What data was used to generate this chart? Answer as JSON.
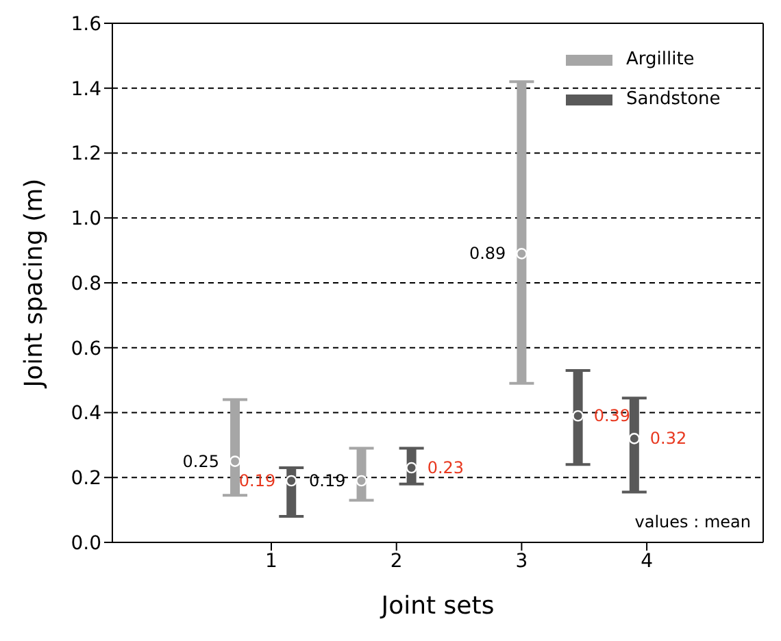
{
  "chart_data": {
    "type": "scatter",
    "xlabel": "Joint sets",
    "ylabel": "Joint spacing (m)",
    "series": [
      {
        "name": "Argillite",
        "color": "#a6a6a6",
        "x": [
          0.71,
          1.72,
          3.0
        ],
        "values": [
          0.25,
          0.19,
          0.89
        ],
        "errors": [
          [
            0.145,
            0.44
          ],
          [
            0.13,
            0.29
          ],
          [
            0.49,
            1.42
          ]
        ]
      },
      {
        "name": "Sandstone",
        "color": "#595959",
        "x": [
          1.16,
          2.12,
          3.45,
          3.9
        ],
        "values": [
          0.19,
          0.23,
          0.39,
          0.32
        ],
        "errors": [
          [
            0.08,
            0.23
          ],
          [
            0.18,
            0.29
          ],
          [
            0.24,
            0.53
          ],
          [
            0.155,
            0.445
          ]
        ]
      }
    ],
    "xlim": [
      -0.27,
      4.93
    ],
    "xticks": [
      1,
      2,
      3,
      4
    ],
    "ylim": [
      0,
      1.6
    ],
    "yticks": [
      {
        "value": 0,
        "label": "0.0"
      },
      {
        "value": 0.2,
        "label": "0.2"
      },
      {
        "value": 0.4,
        "label": "0.4"
      },
      {
        "value": 0.6,
        "label": "0.6"
      },
      {
        "value": 0.8,
        "label": "0.8"
      },
      {
        "value": 1,
        "label": "1.0"
      },
      {
        "value": 1.2,
        "label": "1.2"
      },
      {
        "value": 1.4,
        "label": "1.4"
      },
      {
        "value": 1.6,
        "label": "1.6"
      }
    ],
    "grid": "y",
    "legend": "top right",
    "marker": "circle",
    "data_labels": true,
    "annotations": [
      "values : mean"
    ]
  }
}
